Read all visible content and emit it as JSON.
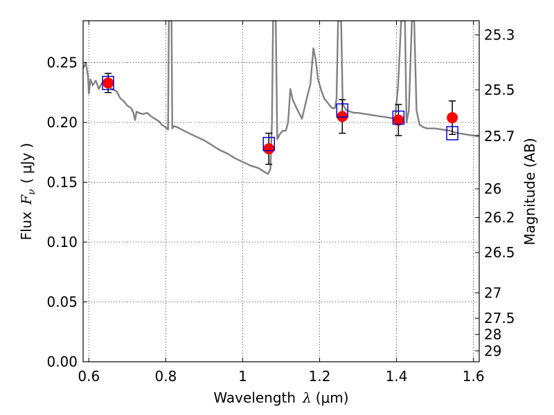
{
  "chart_data": {
    "type": "scatter",
    "xlabel_text": "Wavelength",
    "xlabel_symbol": "λ",
    "xlabel_unit": "(μm)",
    "ylabel_text": "Flux",
    "ylabel_symbol": "F",
    "ylabel_subscript": "ν",
    "ylabel_unit": "( μJy )",
    "y2label": "Magnitude (AB)",
    "xlim": [
      0.585,
      1.615
    ],
    "ylim": [
      0.0,
      0.285
    ],
    "xticks": [
      {
        "value": 0.6,
        "label": "0.6"
      },
      {
        "value": 0.8,
        "label": "0.8"
      },
      {
        "value": 1.0,
        "label": "1"
      },
      {
        "value": 1.2,
        "label": "1.2"
      },
      {
        "value": 1.4,
        "label": "1.4"
      },
      {
        "value": 1.6,
        "label": "1.6"
      }
    ],
    "yticks": [
      {
        "value": 0.0,
        "label": "0.00"
      },
      {
        "value": 0.05,
        "label": "0.05"
      },
      {
        "value": 0.1,
        "label": "0.10"
      },
      {
        "value": 0.15,
        "label": "0.15"
      },
      {
        "value": 0.2,
        "label": "0.20"
      },
      {
        "value": 0.25,
        "label": "0.25"
      }
    ],
    "y2ticks": [
      {
        "flux": 0.2732,
        "label": "25.3"
      },
      {
        "flux": 0.2272,
        "label": "25.5"
      },
      {
        "flux": 0.1886,
        "label": "25.7"
      },
      {
        "flux": 0.1445,
        "label": "26"
      },
      {
        "flux": 0.1205,
        "label": "26.2"
      },
      {
        "flux": 0.0913,
        "label": "26.5"
      },
      {
        "flux": 0.0576,
        "label": "27"
      },
      {
        "flux": 0.0363,
        "label": "27.5"
      },
      {
        "flux": 0.0229,
        "label": "28"
      },
      {
        "flux": 0.0091,
        "label": "29"
      }
    ],
    "grid": true,
    "model_color": "#808080",
    "obs_color": "#ff0000",
    "synth_color": "#0000cc",
    "errbar_color": "#000000",
    "model_spectrum": [
      [
        0.585,
        0.245
      ],
      [
        0.592,
        0.25
      ],
      [
        0.598,
        0.238
      ],
      [
        0.6,
        0.224
      ],
      [
        0.604,
        0.236
      ],
      [
        0.61,
        0.231
      ],
      [
        0.618,
        0.235
      ],
      [
        0.626,
        0.228
      ],
      [
        0.634,
        0.233
      ],
      [
        0.642,
        0.231
      ],
      [
        0.65,
        0.23
      ],
      [
        0.66,
        0.228
      ],
      [
        0.672,
        0.226
      ],
      [
        0.682,
        0.22
      ],
      [
        0.69,
        0.218
      ],
      [
        0.7,
        0.214
      ],
      [
        0.71,
        0.212
      ],
      [
        0.716,
        0.208
      ],
      [
        0.72,
        0.202
      ],
      [
        0.724,
        0.209
      ],
      [
        0.73,
        0.208
      ],
      [
        0.74,
        0.207
      ],
      [
        0.752,
        0.208
      ],
      [
        0.762,
        0.205
      ],
      [
        0.772,
        0.203
      ],
      [
        0.782,
        0.201
      ],
      [
        0.79,
        0.198
      ],
      [
        0.8,
        0.196
      ],
      [
        0.806,
        0.194
      ],
      [
        0.808,
        0.285
      ],
      [
        0.815,
        0.285
      ],
      [
        0.817,
        0.195
      ],
      [
        0.822,
        0.197
      ],
      [
        0.83,
        0.196
      ],
      [
        0.842,
        0.194
      ],
      [
        0.86,
        0.191
      ],
      [
        0.88,
        0.188
      ],
      [
        0.9,
        0.185
      ],
      [
        0.92,
        0.181
      ],
      [
        0.94,
        0.177
      ],
      [
        0.96,
        0.174
      ],
      [
        0.98,
        0.17
      ],
      [
        1.0,
        0.167
      ],
      [
        1.02,
        0.164
      ],
      [
        1.04,
        0.162
      ],
      [
        1.06,
        0.158
      ],
      [
        1.066,
        0.157
      ],
      [
        1.072,
        0.161
      ],
      [
        1.076,
        0.2
      ],
      [
        1.079,
        0.285
      ],
      [
        1.086,
        0.285
      ],
      [
        1.09,
        0.186
      ],
      [
        1.096,
        0.19
      ],
      [
        1.104,
        0.193
      ],
      [
        1.112,
        0.193
      ],
      [
        1.118,
        0.2
      ],
      [
        1.124,
        0.228
      ],
      [
        1.13,
        0.219
      ],
      [
        1.14,
        0.212
      ],
      [
        1.148,
        0.207
      ],
      [
        1.154,
        0.203
      ],
      [
        1.16,
        0.211
      ],
      [
        1.168,
        0.222
      ],
      [
        1.176,
        0.232
      ],
      [
        1.184,
        0.262
      ],
      [
        1.19,
        0.252
      ],
      [
        1.196,
        0.236
      ],
      [
        1.204,
        0.227
      ],
      [
        1.212,
        0.22
      ],
      [
        1.222,
        0.216
      ],
      [
        1.232,
        0.212
      ],
      [
        1.24,
        0.212
      ],
      [
        1.244,
        0.22
      ],
      [
        1.248,
        0.285
      ],
      [
        1.256,
        0.285
      ],
      [
        1.26,
        0.215
      ],
      [
        1.27,
        0.21
      ],
      [
        1.28,
        0.209
      ],
      [
        1.29,
        0.208
      ],
      [
        1.3,
        0.208
      ],
      [
        1.32,
        0.207
      ],
      [
        1.34,
        0.206
      ],
      [
        1.36,
        0.205
      ],
      [
        1.38,
        0.204
      ],
      [
        1.396,
        0.203
      ],
      [
        1.404,
        0.23
      ],
      [
        1.412,
        0.285
      ],
      [
        1.422,
        0.285
      ],
      [
        1.426,
        0.2
      ],
      [
        1.432,
        0.21
      ],
      [
        1.44,
        0.285
      ],
      [
        1.446,
        0.285
      ],
      [
        1.452,
        0.21
      ],
      [
        1.46,
        0.198
      ],
      [
        1.47,
        0.196
      ],
      [
        1.48,
        0.195
      ],
      [
        1.5,
        0.195
      ],
      [
        1.52,
        0.194
      ],
      [
        1.54,
        0.193
      ],
      [
        1.56,
        0.191
      ],
      [
        1.58,
        0.19
      ],
      [
        1.6,
        0.189
      ],
      [
        1.615,
        0.189
      ]
    ],
    "synthetic_photometry": [
      {
        "x": 0.65,
        "y": 0.233
      },
      {
        "x": 1.068,
        "y": 0.182
      },
      {
        "x": 1.259,
        "y": 0.21
      },
      {
        "x": 1.405,
        "y": 0.204
      },
      {
        "x": 1.545,
        "y": 0.191
      }
    ],
    "observed_photometry": [
      {
        "x": 0.65,
        "y": 0.233,
        "err": 0.008
      },
      {
        "x": 1.068,
        "y": 0.178,
        "err": 0.013
      },
      {
        "x": 1.259,
        "y": 0.205,
        "err": 0.014
      },
      {
        "x": 1.405,
        "y": 0.202,
        "err": 0.013
      },
      {
        "x": 1.545,
        "y": 0.204,
        "err": 0.014
      }
    ]
  }
}
